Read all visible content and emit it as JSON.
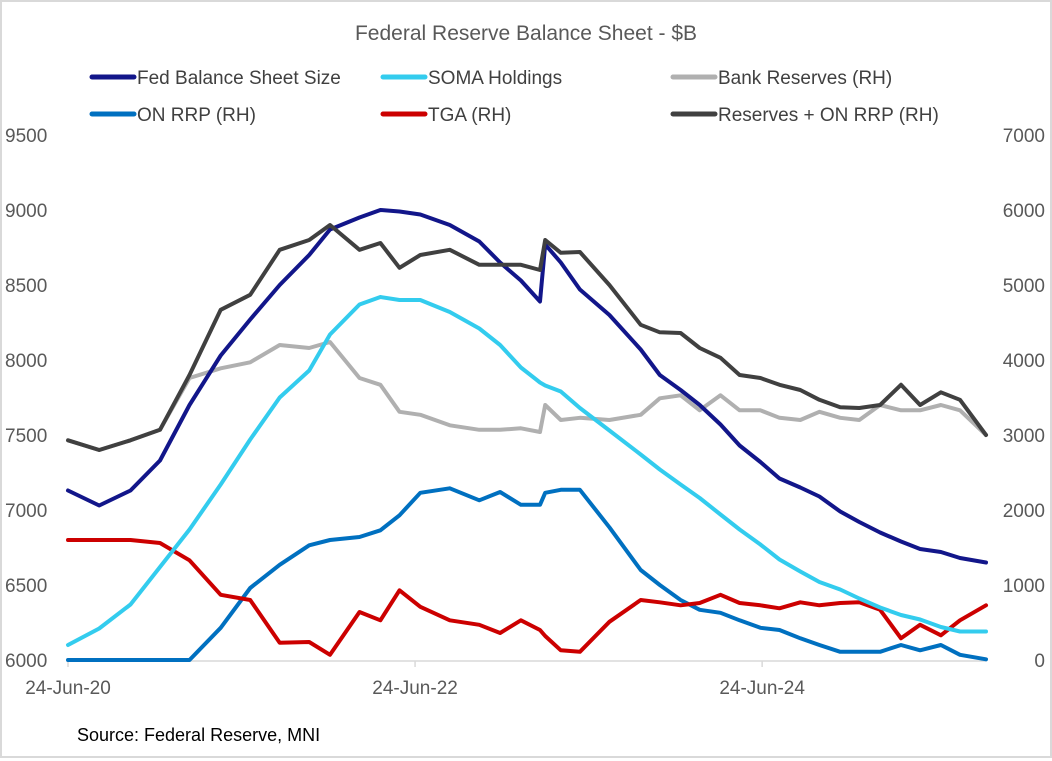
{
  "chart_data": {
    "type": "line",
    "title": "Federal Reserve Balance Sheet - $B",
    "source": "Source: Federal Reserve, MNI",
    "xlabel": "",
    "ylabel": "",
    "x_units": "decimal year",
    "xlim": [
      2020.48,
      2025.77
    ],
    "xticks": [
      {
        "value": 2020.48,
        "label": "24-Jun-20"
      },
      {
        "value": 2022.48,
        "label": "24-Jun-22"
      },
      {
        "value": 2024.48,
        "label": "24-Jun-24"
      }
    ],
    "ylim_left": [
      6000,
      9500
    ],
    "yticks_left": [
      "6000",
      "6500",
      "7000",
      "7500",
      "8000",
      "8500",
      "9000",
      "9500"
    ],
    "ylim_right": [
      0,
      7000
    ],
    "yticks_right": [
      "0",
      "1000",
      "2000",
      "3000",
      "4000",
      "5000",
      "6000",
      "7000"
    ],
    "grid": false,
    "legend_position": "top",
    "x": [
      2020.48,
      2020.66,
      2020.84,
      2021.01,
      2021.18,
      2021.36,
      2021.53,
      2021.7,
      2021.87,
      2021.99,
      2022.16,
      2022.28,
      2022.39,
      2022.51,
      2022.68,
      2022.85,
      2022.97,
      2023.09,
      2023.2,
      2023.23,
      2023.32,
      2023.43,
      2023.6,
      2023.78,
      2023.89,
      2024.01,
      2024.12,
      2024.24,
      2024.35,
      2024.47,
      2024.58,
      2024.7,
      2024.81,
      2024.93,
      2025.04,
      2025.16,
      2025.28,
      2025.39,
      2025.51,
      2025.62,
      2025.77
    ],
    "series": [
      {
        "name": "Bank Reserves (RH)",
        "axis": "right",
        "color": "#b0b0b0",
        "values": [
          2930,
          2800,
          2930,
          3070,
          3760,
          3890,
          3970,
          4200,
          4160,
          4240,
          3760,
          3670,
          3310,
          3270,
          3130,
          3070,
          3070,
          3090,
          3040,
          3400,
          3200,
          3230,
          3200,
          3270,
          3490,
          3530,
          3330,
          3530,
          3330,
          3330,
          3230,
          3200,
          3310,
          3230,
          3200,
          3400,
          3330,
          3330,
          3400,
          3330,
          3000
        ]
      },
      {
        "name": "ON RRP (RH)",
        "axis": "right",
        "color": "#0070c0",
        "values": [
          0,
          0,
          0,
          0,
          0,
          430,
          960,
          1270,
          1530,
          1600,
          1640,
          1730,
          1930,
          2230,
          2290,
          2130,
          2240,
          2070,
          2070,
          2230,
          2270,
          2270,
          1770,
          1200,
          1000,
          800,
          670,
          630,
          530,
          430,
          400,
          290,
          200,
          110,
          110,
          110,
          200,
          130,
          200,
          70,
          10
        ]
      },
      {
        "name": "TGA (RH)",
        "axis": "right",
        "color": "#cc0000",
        "values": [
          1600,
          1600,
          1600,
          1560,
          1330,
          870,
          800,
          230,
          240,
          70,
          640,
          530,
          930,
          710,
          530,
          470,
          360,
          530,
          400,
          320,
          130,
          110,
          510,
          800,
          770,
          730,
          760,
          870,
          760,
          730,
          690,
          770,
          730,
          760,
          770,
          670,
          290,
          470,
          330,
          530,
          730
        ]
      },
      {
        "name": "SOMA Holdings",
        "axis": "left",
        "color": "#33ccee",
        "values": [
          6100,
          6210,
          6370,
          6620,
          6870,
          7170,
          7470,
          7750,
          7930,
          8170,
          8370,
          8420,
          8400,
          8400,
          8320,
          8210,
          8100,
          7950,
          7850,
          7830,
          7790,
          7680,
          7530,
          7370,
          7270,
          7170,
          7080,
          6970,
          6870,
          6770,
          6670,
          6590,
          6520,
          6470,
          6410,
          6350,
          6300,
          6270,
          6220,
          6190,
          6190
        ]
      },
      {
        "name": "Fed Balance Sheet Size",
        "axis": "left",
        "color": "#12168a",
        "values": [
          7130,
          7030,
          7130,
          7330,
          7700,
          8030,
          8270,
          8500,
          8700,
          8870,
          8950,
          9000,
          8990,
          8970,
          8900,
          8790,
          8650,
          8530,
          8390,
          8770,
          8650,
          8470,
          8300,
          8070,
          7900,
          7800,
          7700,
          7570,
          7430,
          7320,
          7210,
          7150,
          7090,
          6990,
          6920,
          6850,
          6790,
          6740,
          6720,
          6680,
          6650
        ]
      },
      {
        "name": "Reserves + ON RRP (RH)",
        "axis": "right",
        "color": "#404040",
        "values": [
          2930,
          2800,
          2930,
          3070,
          3800,
          4670,
          4870,
          5470,
          5600,
          5800,
          5470,
          5560,
          5230,
          5400,
          5470,
          5270,
          5270,
          5270,
          5200,
          5600,
          5430,
          5440,
          5000,
          4470,
          4370,
          4360,
          4160,
          4030,
          3800,
          3760,
          3670,
          3600,
          3470,
          3370,
          3360,
          3400,
          3670,
          3400,
          3570,
          3470,
          3000
        ]
      }
    ],
    "legend": [
      {
        "label": "Fed Balance Sheet Size",
        "color": "#12168a"
      },
      {
        "label": "SOMA Holdings",
        "color": "#33ccee"
      },
      {
        "label": "Bank Reserves (RH)",
        "color": "#b0b0b0"
      },
      {
        "label": "ON RRP (RH)",
        "color": "#0070c0"
      },
      {
        "label": "TGA (RH)",
        "color": "#cc0000"
      },
      {
        "label": "Reserves + ON RRP (RH)",
        "color": "#404040"
      }
    ]
  }
}
